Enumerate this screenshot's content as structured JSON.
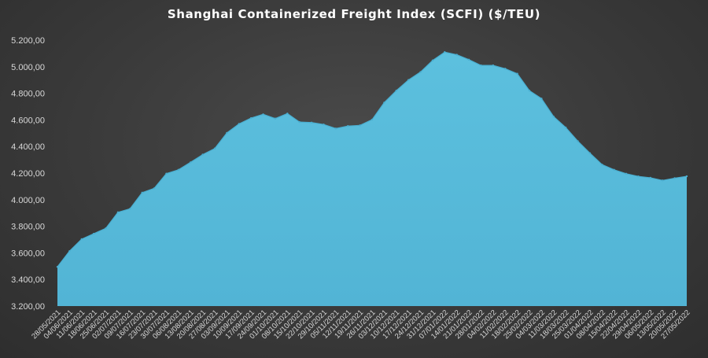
{
  "chart_data": {
    "type": "area",
    "title": "Shanghai Containerized Freight Index  (SCFI) ($/TEU)",
    "xlabel": "",
    "ylabel": "",
    "ylim": [
      3200,
      5200
    ],
    "yticks": [
      "3.200,00",
      "3.400,00",
      "3.600,00",
      "3.800,00",
      "4.000,00",
      "4.200,00",
      "4.400,00",
      "4.600,00",
      "4.800,00",
      "5.000,00",
      "5.200,00"
    ],
    "ytick_values": [
      3200,
      3400,
      3600,
      3800,
      4000,
      4200,
      4400,
      4600,
      4800,
      5000,
      5200
    ],
    "grid": false,
    "legend": "none",
    "colors": {
      "fill": "#57b9d8",
      "line": "#4aaed0",
      "text": "#d9d9d9"
    },
    "categories": [
      "28/05/2021",
      "04/06/2021",
      "11/06/2021",
      "18/06/2021",
      "25/06/2021",
      "02/07/2021",
      "09/07/2021",
      "16/07/2021",
      "23/07/2021",
      "30/07/2021",
      "06/08/2021",
      "13/08/2021",
      "20/08/2021",
      "27/08/2021",
      "03/09/2021",
      "10/09/2021",
      "17/09/2021",
      "24/09/2021",
      "01/10/2021",
      "08/10/2021",
      "15/10/2021",
      "22/10/2021",
      "29/10/2021",
      "05/11/2021",
      "12/11/2021",
      "19/11/2021",
      "26/11/2021",
      "03/12/2021",
      "10/12/2021",
      "17/12/2021",
      "24/12/2021",
      "31/12/2021",
      "07/01/2022",
      "14/01/2022",
      "21/01/2022",
      "28/01/2022",
      "04/02/2022",
      "11/02/2022",
      "18/02/2022",
      "25/02/2022",
      "04/03/2022",
      "11/03/2022",
      "18/03/2022",
      "25/03/2022",
      "01/04/2022",
      "08/04/2022",
      "15/04/2022",
      "22/04/2022",
      "29/04/2022",
      "06/05/2022",
      "13/05/2022",
      "20/05/2022",
      "27/05/2022"
    ],
    "values": [
      3495,
      3613,
      3703,
      3744,
      3785,
      3905,
      3932,
      4053,
      4086,
      4196,
      4225,
      4281,
      4339,
      4385,
      4502,
      4570,
      4614,
      4642,
      4610,
      4648,
      4584,
      4580,
      4566,
      4535,
      4554,
      4559,
      4602,
      4730,
      4820,
      4900,
      4960,
      5047,
      5110,
      5090,
      5053,
      5010,
      5010,
      4985,
      4947,
      4820,
      4760,
      4625,
      4543,
      4440,
      4350,
      4264,
      4225,
      4195,
      4175,
      4165,
      4145,
      4162,
      4176
    ]
  }
}
